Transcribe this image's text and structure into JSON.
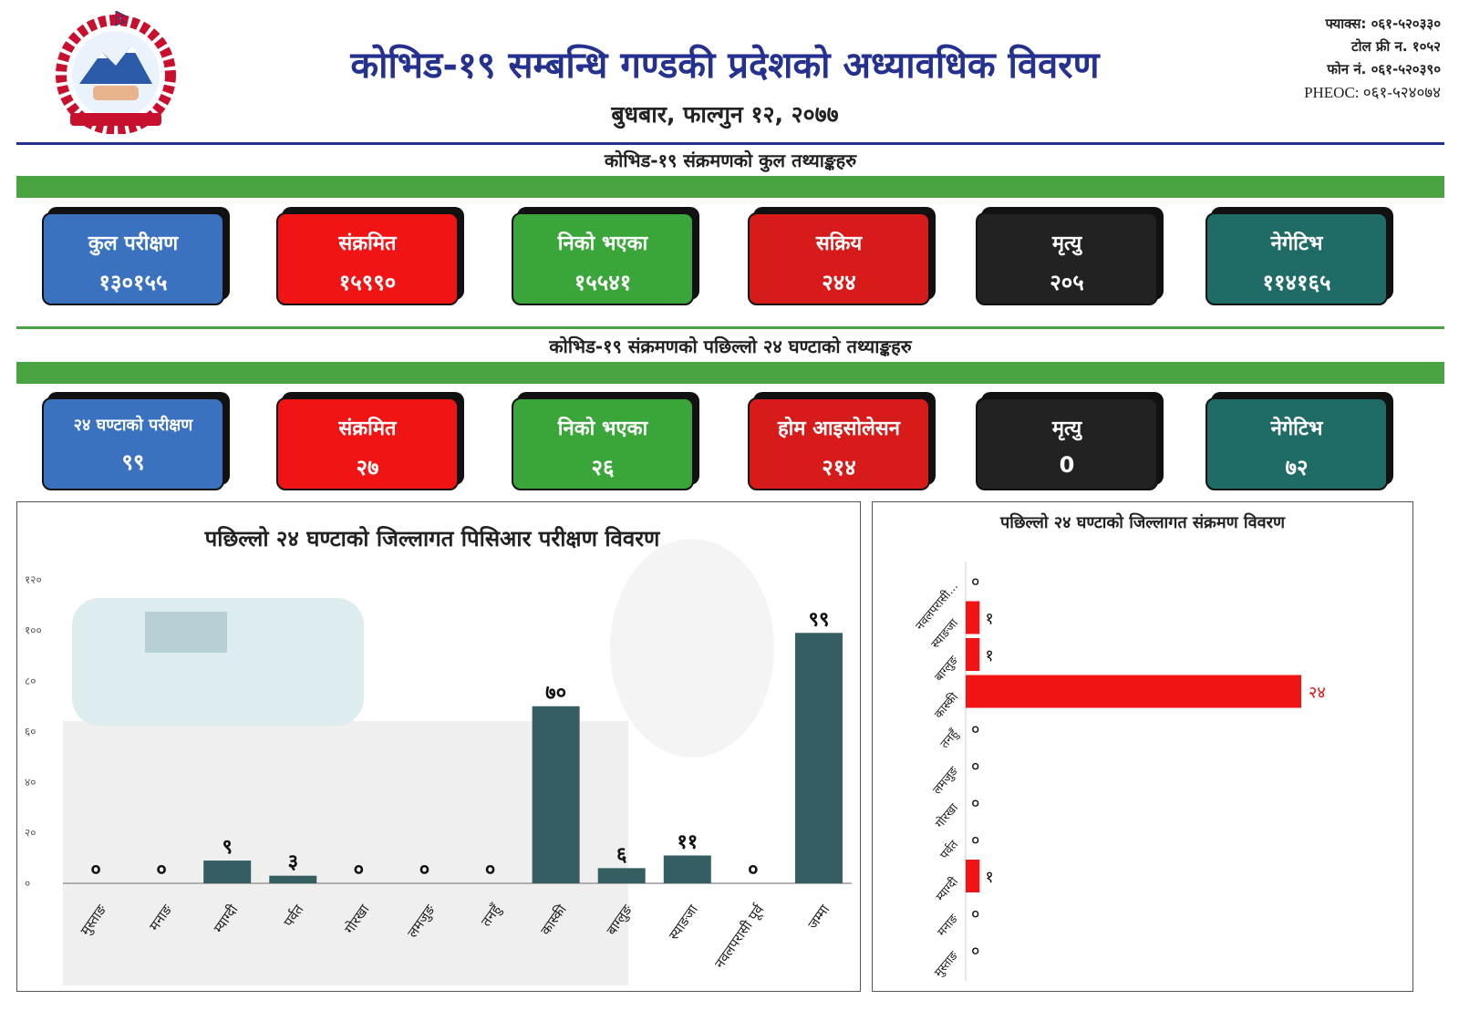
{
  "header": {
    "title": "कोभिड-१९ सम्बन्धि गण्डकी प्रदेशको अध्यावधिक विवरण",
    "date": "बुधबार, फाल्गुन १२, २०७७",
    "contact": [
      "फ्याक्स: ०६१-५२०३३०",
      "टोल फ्री न. १०५२",
      "फोन नं. ०६१-५२०३९०",
      "PHEOC: ०६१-५२४०७४"
    ],
    "logo_text": "जननी जन्मभूमिश्च स्वर्गादपि गरीयसी"
  },
  "totals": {
    "title": "कोभिड-१९ संक्रमणको कुल तथ्याङ्कहरु",
    "cards": [
      {
        "label": "कुल परीक्षण",
        "value": "१३०१५५",
        "color": "#3a72c0"
      },
      {
        "label": "संक्रमित",
        "value": "१५९९०",
        "color": "#f01414"
      },
      {
        "label": "निको भएका",
        "value": "१५५४१",
        "color": "#3aa63a"
      },
      {
        "label": "सक्रिय",
        "value": "२४४",
        "color": "#d71a1a"
      },
      {
        "label": "मृत्यु",
        "value": "२०५",
        "color": "#222222"
      },
      {
        "label": "नेगेटिभ",
        "value": "११४१६५",
        "color": "#1f6b66"
      }
    ]
  },
  "last24": {
    "title": "कोभिड-१९ संक्रमणको पछिल्लो २४ घण्टाको तथ्याङ्कहरु",
    "cards": [
      {
        "label": "२४ घण्टाको परीक्षण",
        "value": "९९",
        "color": "#3a72c0"
      },
      {
        "label": "संक्रमित",
        "value": "२७",
        "color": "#f01414"
      },
      {
        "label": "निको भएका",
        "value": "२६",
        "color": "#3aa63a"
      },
      {
        "label": "होम आइसोलेसन",
        "value": "२१४",
        "color": "#d71a1a"
      },
      {
        "label": "मृत्यु",
        "value": "0",
        "color": "#222222"
      },
      {
        "label": "नेगेटिभ",
        "value": "७२",
        "color": "#1f6b66"
      }
    ]
  },
  "chart_data": [
    {
      "type": "bar",
      "title": "पछिल्लो २४ घण्टाको जिल्लागत पिसिआर परीक्षण विवरण",
      "categories": [
        "मुस्ताङ",
        "मनाङ",
        "म्याग्दी",
        "पर्वत",
        "गोरखा",
        "लमजुङ",
        "तनहुँ",
        "कास्की",
        "बाग्लुङ",
        "स्याङजा",
        "नवलपरासी पूर्व",
        "जम्मा"
      ],
      "values": [
        0,
        0,
        9,
        3,
        0,
        0,
        0,
        70,
        6,
        11,
        0,
        99
      ],
      "labels": [
        "०",
        "०",
        "९",
        "३",
        "०",
        "०",
        "०",
        "७०",
        "६",
        "११",
        "०",
        "९९"
      ],
      "yticks": [
        "०",
        "२०",
        "४०",
        "६०",
        "८०",
        "१००",
        "१२०"
      ],
      "ylim": [
        0,
        120
      ],
      "color": "#355e62",
      "grid": false
    },
    {
      "type": "bar",
      "orientation": "horizontal",
      "title": "पछिल्लो २४ घण्टाको जिल्लागत संक्रमण विवरण",
      "categories": [
        "नवलपरासी...",
        "स्याङजा",
        "बाग्लुङ",
        "कास्की",
        "तनहुँ",
        "लमजुङ",
        "गोरखा",
        "पर्वत",
        "म्याग्दी",
        "मनाङ",
        "मुस्ताङ"
      ],
      "values": [
        0,
        1,
        1,
        24,
        0,
        0,
        0,
        0,
        1,
        0,
        0
      ],
      "labels": [
        "०",
        "१",
        "१",
        "२४",
        "०",
        "०",
        "०",
        "०",
        "१",
        "०",
        "०"
      ],
      "color": "#f01414",
      "grid": false
    }
  ]
}
